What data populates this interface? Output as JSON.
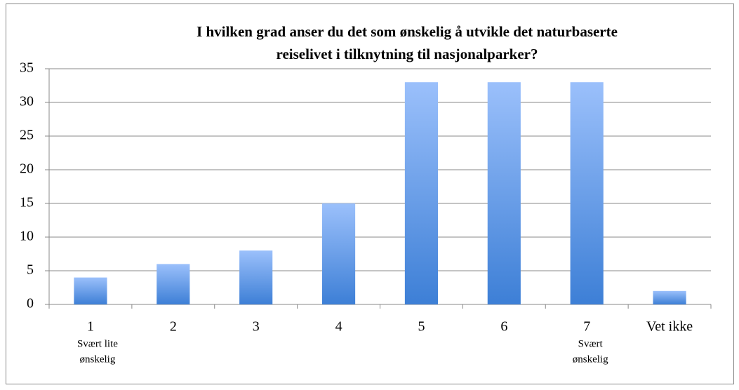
{
  "chart_data": {
    "type": "bar",
    "title": [
      "I hvilken grad anser du det som ønskelig å utvikle det naturbaserte",
      "reiselivet i tilknytning til nasjonalparker?"
    ],
    "categories": [
      "1",
      "2",
      "3",
      "4",
      "5",
      "6",
      "7",
      "Vet ikke"
    ],
    "values": [
      4,
      6,
      8,
      15,
      33,
      33,
      33,
      2
    ],
    "color": [
      "#9bc0fb",
      "#3d7fd6"
    ],
    "annotations": [
      [
        "Svært lite",
        "ønskelig"
      ],
      [
        "Svært",
        "ønskelig"
      ]
    ],
    "ylim": [
      0,
      35
    ],
    "yticks": [
      0,
      5,
      10,
      15,
      20,
      25,
      30,
      35
    ],
    "grid": true
  }
}
